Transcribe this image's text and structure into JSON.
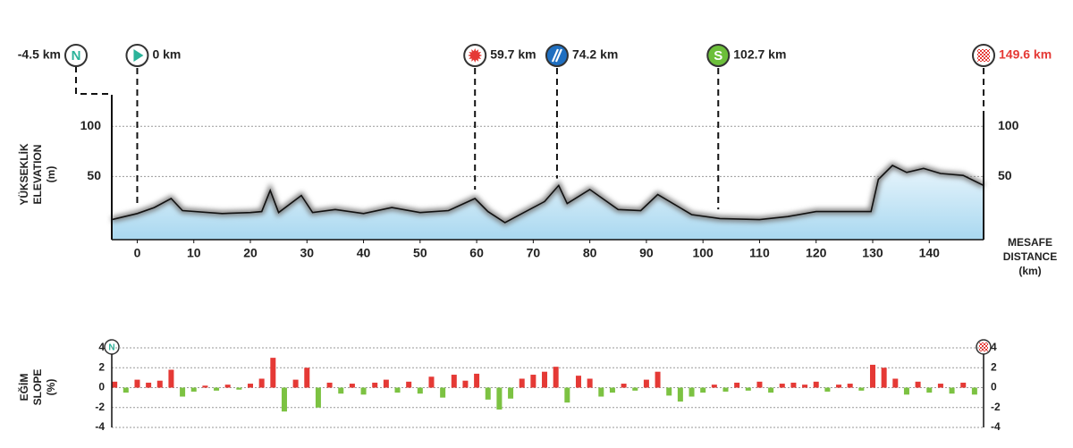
{
  "chart_data": [
    {
      "type": "area",
      "axis_label_left": [
        "YÜKSEKLİK",
        "ELEVATION",
        "(m)"
      ],
      "axis_label_right": [
        "MESAFE",
        "DISTANCE",
        "(km)"
      ],
      "x": [
        -4.5,
        0,
        3,
        6,
        8,
        15,
        20,
        22,
        23.5,
        25,
        29,
        31,
        35,
        40,
        45,
        50,
        55,
        59.7,
        62,
        65,
        68,
        72,
        74.5,
        76,
        80,
        85,
        89,
        92,
        95,
        98,
        103,
        110,
        115,
        120,
        125,
        129.7,
        131,
        133.5,
        136,
        139,
        142,
        146,
        149.6
      ],
      "values": [
        7,
        13,
        19,
        28,
        16,
        13,
        14,
        15,
        36,
        14,
        31,
        14,
        17,
        13,
        19,
        14,
        16,
        28,
        15,
        4,
        13,
        25,
        41,
        23,
        37,
        17,
        16,
        32,
        22,
        12,
        8,
        7,
        10,
        15,
        15,
        15,
        47,
        61,
        54,
        58,
        53,
        51,
        41
      ],
      "color": "#111111",
      "fill": "#bfe3f5",
      "xlim": [
        -4.5,
        149.6
      ],
      "ylim": [
        -13,
        110
      ],
      "xticks": [
        0,
        10,
        20,
        30,
        40,
        50,
        60,
        70,
        80,
        90,
        100,
        110,
        120,
        130,
        140
      ],
      "yticks": [
        50,
        100
      ],
      "grid": true,
      "markers": [
        {
          "km": -4.5,
          "label": "-4.5 km",
          "icon": "N",
          "icon_text": "N"
        },
        {
          "km": 0,
          "label": "0 km",
          "icon": "start"
        },
        {
          "km": 59.7,
          "label": "59.7 km",
          "icon": "sprint"
        },
        {
          "km": 74.2,
          "label": "74.2 km",
          "icon": "feed"
        },
        {
          "km": 102.7,
          "label": "102.7 km",
          "icon": "S",
          "icon_text": "S"
        },
        {
          "km": 149.6,
          "label": "149.6 km",
          "icon": "finish",
          "label_color": "#e53935"
        }
      ]
    },
    {
      "type": "bar",
      "axis_label_left": [
        "EĞİM",
        "SLOPE",
        "(%)"
      ],
      "x": [
        -4,
        -2,
        0,
        2,
        4,
        6,
        8,
        10,
        12,
        14,
        16,
        18,
        20,
        22,
        24,
        26,
        28,
        30,
        32,
        34,
        36,
        38,
        40,
        42,
        44,
        46,
        48,
        50,
        52,
        54,
        56,
        58,
        60,
        62,
        64,
        66,
        68,
        70,
        72,
        74,
        76,
        78,
        80,
        82,
        84,
        86,
        88,
        90,
        92,
        94,
        96,
        98,
        100,
        102,
        104,
        106,
        108,
        110,
        112,
        114,
        116,
        118,
        120,
        122,
        124,
        126,
        128,
        130,
        132,
        134,
        136,
        138,
        140,
        142,
        144,
        146,
        148
      ],
      "values": [
        0.6,
        -0.5,
        0.8,
        0.5,
        0.7,
        1.8,
        -0.9,
        -0.4,
        0.2,
        -0.3,
        0.3,
        -0.2,
        0.4,
        0.9,
        3.0,
        -2.4,
        0.8,
        2.0,
        -2.0,
        0.5,
        -0.6,
        0.4,
        -0.7,
        0.5,
        0.8,
        -0.5,
        0.6,
        -0.6,
        1.1,
        -1.0,
        1.3,
        0.7,
        1.4,
        -1.2,
        -2.2,
        -1.1,
        0.9,
        1.3,
        1.6,
        2.1,
        -1.5,
        1.2,
        0.9,
        -0.9,
        -0.5,
        0.4,
        -0.3,
        0.8,
        1.6,
        -0.8,
        -1.4,
        -0.9,
        -0.5,
        0.3,
        -0.4,
        0.5,
        -0.3,
        0.6,
        -0.5,
        0.4,
        0.5,
        0.3,
        0.6,
        -0.4,
        0.3,
        0.4,
        -0.3,
        2.3,
        2.0,
        0.9,
        -0.7,
        0.6,
        -0.5,
        0.4,
        -0.6,
        0.5,
        -0.7
      ],
      "positive_color": "#e53935",
      "negative_color": "#7cc242",
      "xlim": [
        -4.5,
        149.6
      ],
      "ylim": [
        -4,
        4
      ],
      "yticks": [
        -4,
        -2,
        0,
        2,
        4
      ],
      "grid": true
    }
  ]
}
